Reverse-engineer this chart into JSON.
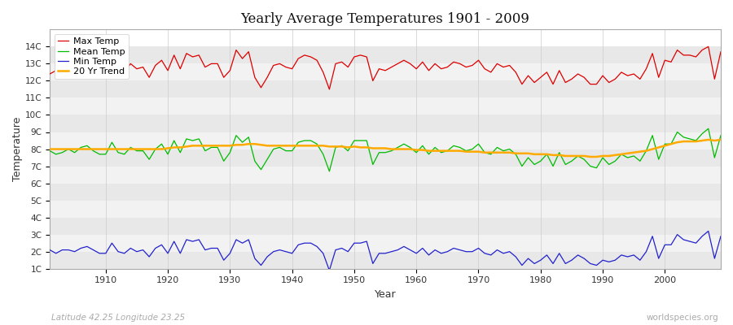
{
  "title": "Yearly Average Temperatures 1901 - 2009",
  "xlabel": "Year",
  "ylabel": "Temperature",
  "bottom_left_label": "Latitude 42.25 Longitude 23.25",
  "bottom_right_label": "worldspecies.org",
  "ylim": [
    1,
    15
  ],
  "xlim": [
    1901,
    2009
  ],
  "yticks": [
    "1C",
    "2C",
    "3C",
    "4C",
    "5C",
    "6C",
    "7C",
    "8C",
    "9C",
    "10C",
    "11C",
    "12C",
    "13C",
    "14C"
  ],
  "ytick_vals": [
    1,
    2,
    3,
    4,
    5,
    6,
    7,
    8,
    9,
    10,
    11,
    12,
    13,
    14
  ],
  "xticks": [
    1910,
    1920,
    1930,
    1940,
    1950,
    1960,
    1970,
    1980,
    1990,
    2000
  ],
  "bg_outer_color": "#ffffff",
  "plot_bg_color": "#f0f0f0",
  "band_light": "#f5f5f5",
  "band_dark": "#e0e0e0",
  "grid_color": "#cccccc",
  "max_temp_color": "#dd0000",
  "mean_temp_color": "#00bb00",
  "min_temp_color": "#2222cc",
  "trend_color": "#ffaa00",
  "legend_labels": [
    "Max Temp",
    "Mean Temp",
    "Min Temp",
    "20 Yr Trend"
  ],
  "years": [
    1901,
    1902,
    1903,
    1904,
    1905,
    1906,
    1907,
    1908,
    1909,
    1910,
    1911,
    1912,
    1913,
    1914,
    1915,
    1916,
    1917,
    1918,
    1919,
    1920,
    1921,
    1922,
    1923,
    1924,
    1925,
    1926,
    1927,
    1928,
    1929,
    1930,
    1931,
    1932,
    1933,
    1934,
    1935,
    1936,
    1937,
    1938,
    1939,
    1940,
    1941,
    1942,
    1943,
    1944,
    1945,
    1946,
    1947,
    1948,
    1949,
    1950,
    1951,
    1952,
    1953,
    1954,
    1955,
    1956,
    1957,
    1958,
    1959,
    1960,
    1961,
    1962,
    1963,
    1964,
    1965,
    1966,
    1967,
    1968,
    1969,
    1970,
    1971,
    1972,
    1973,
    1974,
    1975,
    1976,
    1977,
    1978,
    1979,
    1980,
    1981,
    1982,
    1983,
    1984,
    1985,
    1986,
    1987,
    1988,
    1989,
    1990,
    1991,
    1992,
    1993,
    1994,
    1995,
    1996,
    1997,
    1998,
    1999,
    2000,
    2001,
    2002,
    2003,
    2004,
    2005,
    2006,
    2007,
    2008,
    2009
  ],
  "max_temp": [
    12.4,
    12.6,
    12.5,
    12.8,
    12.6,
    12.9,
    13.1,
    12.7,
    12.5,
    12.4,
    13.3,
    12.6,
    12.5,
    13.0,
    12.7,
    12.8,
    12.2,
    12.9,
    13.2,
    12.6,
    13.5,
    12.7,
    13.6,
    13.4,
    13.5,
    12.8,
    13.0,
    13.0,
    12.2,
    12.6,
    13.8,
    13.3,
    13.7,
    12.2,
    11.6,
    12.2,
    12.9,
    13.0,
    12.8,
    12.7,
    13.3,
    13.5,
    13.4,
    13.2,
    12.5,
    11.5,
    13.0,
    13.1,
    12.8,
    13.4,
    13.5,
    13.4,
    12.0,
    12.7,
    12.6,
    12.8,
    13.0,
    13.2,
    13.0,
    12.7,
    13.1,
    12.6,
    13.0,
    12.7,
    12.8,
    13.1,
    13.0,
    12.8,
    12.9,
    13.2,
    12.7,
    12.5,
    13.0,
    12.8,
    12.9,
    12.5,
    11.8,
    12.3,
    11.9,
    12.2,
    12.5,
    11.8,
    12.6,
    11.9,
    12.1,
    12.4,
    12.2,
    11.8,
    11.8,
    12.3,
    11.9,
    12.1,
    12.5,
    12.3,
    12.4,
    12.1,
    12.7,
    13.6,
    12.2,
    13.2,
    13.1,
    13.8,
    13.5,
    13.5,
    13.4,
    13.8,
    14.0,
    12.1,
    13.7
  ],
  "mean_temp": [
    7.9,
    7.7,
    7.8,
    8.0,
    7.8,
    8.1,
    8.2,
    7.9,
    7.7,
    7.7,
    8.4,
    7.8,
    7.7,
    8.1,
    7.9,
    7.9,
    7.4,
    8.0,
    8.3,
    7.7,
    8.5,
    7.8,
    8.6,
    8.5,
    8.6,
    7.9,
    8.1,
    8.1,
    7.3,
    7.8,
    8.8,
    8.4,
    8.7,
    7.3,
    6.8,
    7.4,
    8.0,
    8.1,
    7.9,
    7.9,
    8.4,
    8.5,
    8.5,
    8.3,
    7.7,
    6.7,
    8.1,
    8.2,
    7.9,
    8.5,
    8.5,
    8.5,
    7.1,
    7.8,
    7.8,
    7.9,
    8.1,
    8.3,
    8.1,
    7.8,
    8.2,
    7.7,
    8.1,
    7.8,
    7.9,
    8.2,
    8.1,
    7.9,
    8.0,
    8.3,
    7.8,
    7.7,
    8.1,
    7.9,
    8.0,
    7.7,
    7.0,
    7.5,
    7.1,
    7.3,
    7.7,
    7.0,
    7.8,
    7.1,
    7.3,
    7.6,
    7.4,
    7.0,
    6.9,
    7.5,
    7.1,
    7.3,
    7.7,
    7.5,
    7.6,
    7.3,
    7.9,
    8.8,
    7.4,
    8.3,
    8.3,
    9.0,
    8.7,
    8.6,
    8.5,
    8.9,
    9.2,
    7.5,
    8.8
  ],
  "min_temp": [
    2.1,
    1.9,
    2.1,
    2.1,
    2.0,
    2.2,
    2.3,
    2.1,
    1.9,
    1.9,
    2.5,
    2.0,
    1.9,
    2.2,
    2.0,
    2.1,
    1.7,
    2.2,
    2.4,
    1.9,
    2.6,
    1.9,
    2.7,
    2.6,
    2.7,
    2.1,
    2.2,
    2.2,
    1.5,
    1.9,
    2.7,
    2.5,
    2.7,
    1.6,
    1.2,
    1.7,
    2.0,
    2.1,
    2.0,
    1.9,
    2.4,
    2.5,
    2.5,
    2.3,
    1.9,
    0.9,
    2.1,
    2.2,
    2.0,
    2.5,
    2.5,
    2.6,
    1.3,
    1.9,
    1.9,
    2.0,
    2.1,
    2.3,
    2.1,
    1.9,
    2.2,
    1.8,
    2.1,
    1.9,
    2.0,
    2.2,
    2.1,
    2.0,
    2.0,
    2.2,
    1.9,
    1.8,
    2.1,
    1.9,
    2.0,
    1.7,
    1.2,
    1.6,
    1.3,
    1.5,
    1.8,
    1.3,
    1.9,
    1.3,
    1.5,
    1.8,
    1.6,
    1.3,
    1.2,
    1.5,
    1.4,
    1.5,
    1.8,
    1.7,
    1.8,
    1.5,
    2.0,
    2.9,
    1.6,
    2.4,
    2.4,
    3.0,
    2.7,
    2.6,
    2.5,
    2.9,
    3.2,
    1.6,
    2.9
  ],
  "trend": [
    8.0,
    8.0,
    8.0,
    8.0,
    8.0,
    8.0,
    8.0,
    8.0,
    8.0,
    8.0,
    8.0,
    8.0,
    8.0,
    8.0,
    8.0,
    8.0,
    8.0,
    8.0,
    8.0,
    8.05,
    8.1,
    8.1,
    8.15,
    8.2,
    8.2,
    8.2,
    8.2,
    8.2,
    8.2,
    8.2,
    8.25,
    8.25,
    8.3,
    8.3,
    8.25,
    8.2,
    8.2,
    8.2,
    8.2,
    8.2,
    8.2,
    8.2,
    8.2,
    8.2,
    8.2,
    8.15,
    8.15,
    8.15,
    8.1,
    8.15,
    8.1,
    8.1,
    8.05,
    8.05,
    8.05,
    8.0,
    8.0,
    8.0,
    8.0,
    7.95,
    7.95,
    7.9,
    7.9,
    7.9,
    7.9,
    7.9,
    7.9,
    7.85,
    7.85,
    7.85,
    7.8,
    7.8,
    7.8,
    7.8,
    7.8,
    7.75,
    7.75,
    7.75,
    7.7,
    7.7,
    7.7,
    7.65,
    7.65,
    7.6,
    7.6,
    7.6,
    7.6,
    7.55,
    7.55,
    7.6,
    7.6,
    7.65,
    7.7,
    7.75,
    7.8,
    7.85,
    7.9,
    8.0,
    8.1,
    8.2,
    8.3,
    8.4,
    8.45,
    8.45,
    8.45,
    8.5,
    8.55,
    8.5,
    8.55
  ]
}
